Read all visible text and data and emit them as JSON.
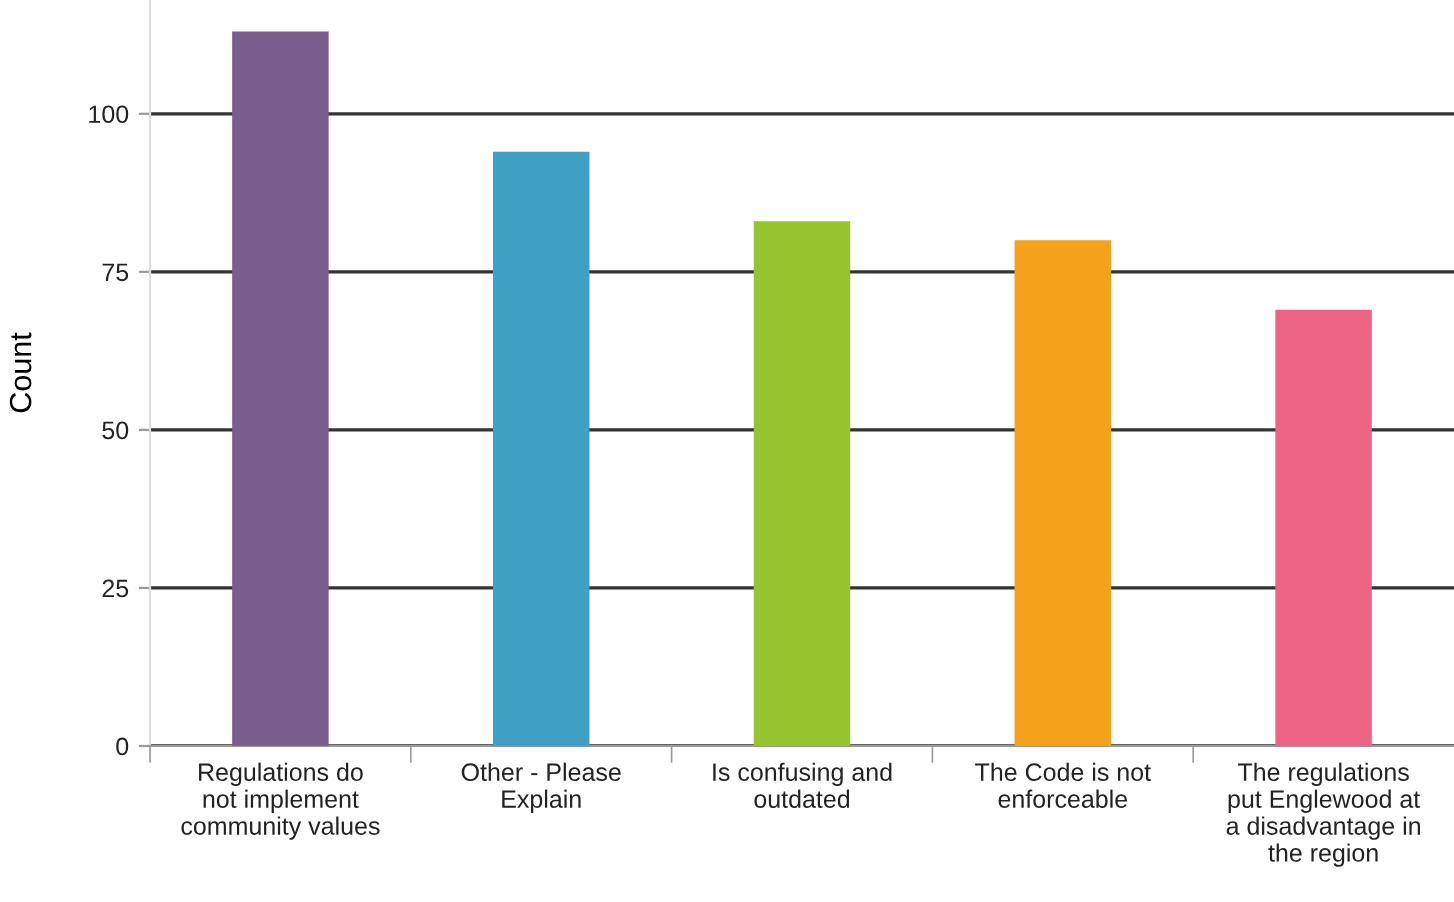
{
  "chart_data": {
    "type": "bar",
    "ylabel": "Count",
    "categories": [
      "Regulations do\nnot implement\ncommunity values",
      "Other - Please\nExplain",
      "Is confusing and\noutdated",
      "The Code is not\nenforceable",
      "The regulations\nput Englewood at\na disadvantage in\nthe region"
    ],
    "values": [
      113,
      94,
      83,
      80,
      69
    ],
    "colors": [
      "#7b5e8e",
      "#3fa0c4",
      "#96c42f",
      "#f4a11c",
      "#ee6486"
    ],
    "ylim": [
      0,
      118
    ],
    "yticks": [
      0,
      25,
      50,
      75,
      100
    ],
    "grid": "y",
    "legend": false
  }
}
